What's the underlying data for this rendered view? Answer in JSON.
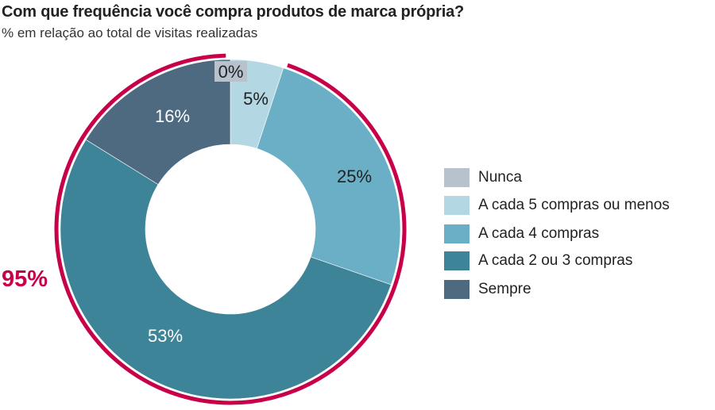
{
  "title": "Com que frequência você compra produtos de marca própria?",
  "subtitle": "% em relação ao total de visitas realizadas",
  "highlight": {
    "label": "95%",
    "color": "#C8004A"
  },
  "legend": [
    {
      "label": "Nunca",
      "color": "#B8C2CC"
    },
    {
      "label": "A cada 5 compras ou menos",
      "color": "#B3D8E3"
    },
    {
      "label": "A cada 4 compras",
      "color": "#6BAFC6"
    },
    {
      "label": "A cada 2 ou 3 compras",
      "color": "#3D8499"
    },
    {
      "label": "Sempre",
      "color": "#4D6A80"
    }
  ],
  "slice_labels": {
    "nunca": "0%",
    "cinco": "5%",
    "quatro": "25%",
    "dois_tres": "53%",
    "sempre": "16%"
  },
  "chart_data": {
    "type": "pie",
    "subtype": "donut",
    "title": "Com que frequência você compra produtos de marca própria?",
    "subtitle": "% em relação ao total de visitas realizadas",
    "categories": [
      "Nunca",
      "A cada 5 compras ou menos",
      "A cada 4 compras",
      "A cada 2 ou 3 compras",
      "Sempre"
    ],
    "values": [
      0,
      5,
      25,
      53,
      16
    ],
    "unit": "%",
    "colors": [
      "#B8C2CC",
      "#B3D8E3",
      "#6BAFC6",
      "#3D8499",
      "#4D6A80"
    ],
    "annotations": [
      {
        "text": "95%",
        "description": "Red arc spanning all frequencies except 'Nunca' and 'A cada 5 compras ou menos'... covering 'A cada 4 compras', 'A cada 2 ou 3 compras' and 'Sempre' plus the 5% share boundary",
        "color": "#C8004A"
      }
    ],
    "legend_position": "right",
    "start_angle": "12 o'clock, clockwise"
  }
}
